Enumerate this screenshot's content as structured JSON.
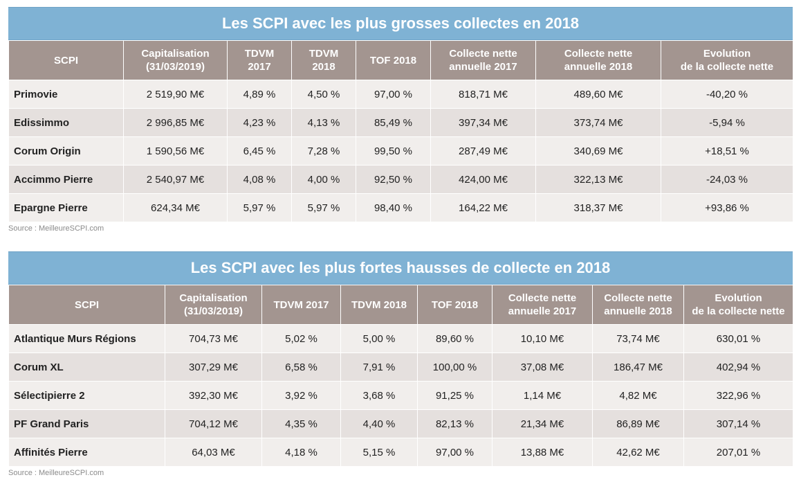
{
  "table1": {
    "title": "Les SCPI avec les plus grosses collectes en 2018",
    "headers": [
      [
        "SCPI"
      ],
      [
        "Capitalisation",
        "(31/03/2019)"
      ],
      [
        "TDVM",
        "2017"
      ],
      [
        "TDVM",
        "2018"
      ],
      [
        "TOF 2018"
      ],
      [
        "Collecte nette",
        "annuelle 2017"
      ],
      [
        "Collecte nette",
        "annuelle 2018"
      ],
      [
        "Evolution",
        "de la collecte nette"
      ]
    ],
    "rows": [
      [
        "Primovie",
        "2 519,90 M€",
        "4,89 %",
        "4,50 %",
        "97,00 %",
        "818,71 M€",
        "489,60 M€",
        "-40,20 %"
      ],
      [
        "Edissimmo",
        "2 996,85 M€",
        "4,23 %",
        "4,13 %",
        "85,49 %",
        "397,34 M€",
        "373,74 M€",
        "-5,94 %"
      ],
      [
        "Corum Origin",
        "1 590,56 M€",
        "6,45 %",
        "7,28 %",
        "99,50 %",
        "287,49 M€",
        "340,69 M€",
        "+18,51 %"
      ],
      [
        "Accimmo Pierre",
        "2 540,97 M€",
        "4,08 %",
        "4,00 %",
        "92,50 %",
        "424,00 M€",
        "322,13 M€",
        "-24,03 %"
      ],
      [
        "Epargne Pierre",
        "624,34 M€",
        "5,97 %",
        "5,97 %",
        "98,40 %",
        "164,22 M€",
        "318,37 M€",
        "+93,86 %"
      ]
    ],
    "source": "Source : MeilleureSCPI.com"
  },
  "table2": {
    "title": "Les SCPI avec les plus fortes hausses de collecte en 2018",
    "headers": [
      [
        "SCPI"
      ],
      [
        "Capitalisation",
        "(31/03/2019)"
      ],
      [
        "TDVM 2017"
      ],
      [
        "TDVM 2018"
      ],
      [
        "TOF 2018"
      ],
      [
        "Collecte nette",
        "annuelle 2017"
      ],
      [
        "Collecte nette",
        "annuelle 2018"
      ],
      [
        "Evolution",
        "de la collecte nette"
      ]
    ],
    "rows": [
      [
        "Atlantique Murs Régions",
        "704,73 M€",
        "5,02 %",
        "5,00 %",
        "89,60 %",
        "10,10 M€",
        "73,74 M€",
        "630,01 %"
      ],
      [
        "Corum XL",
        "307,29 M€",
        "6,58 %",
        "7,91 %",
        "100,00 %",
        "37,08 M€",
        "186,47 M€",
        "402,94 %"
      ],
      [
        "Sélectipierre 2",
        "392,30 M€",
        "3,92 %",
        "3,68 %",
        "91,25 %",
        "1,14 M€",
        "4,82 M€",
        "322,96 %"
      ],
      [
        "PF Grand Paris",
        "704,12 M€",
        "4,35 %",
        "4,40 %",
        "82,13 %",
        "21,34 M€",
        "86,89 M€",
        "307,14 %"
      ],
      [
        "Affinités Pierre",
        "64,03 M€",
        "4,18 %",
        "5,15 %",
        "97,00 %",
        "13,88 M€",
        "42,62 M€",
        "207,01 %"
      ]
    ],
    "source": "Source : MeilleureSCPI.com"
  },
  "colors": {
    "banner": "#7fb2d4",
    "header": "#a39590",
    "row_light": "#f1eeec",
    "row_dark": "#e5e0de"
  }
}
